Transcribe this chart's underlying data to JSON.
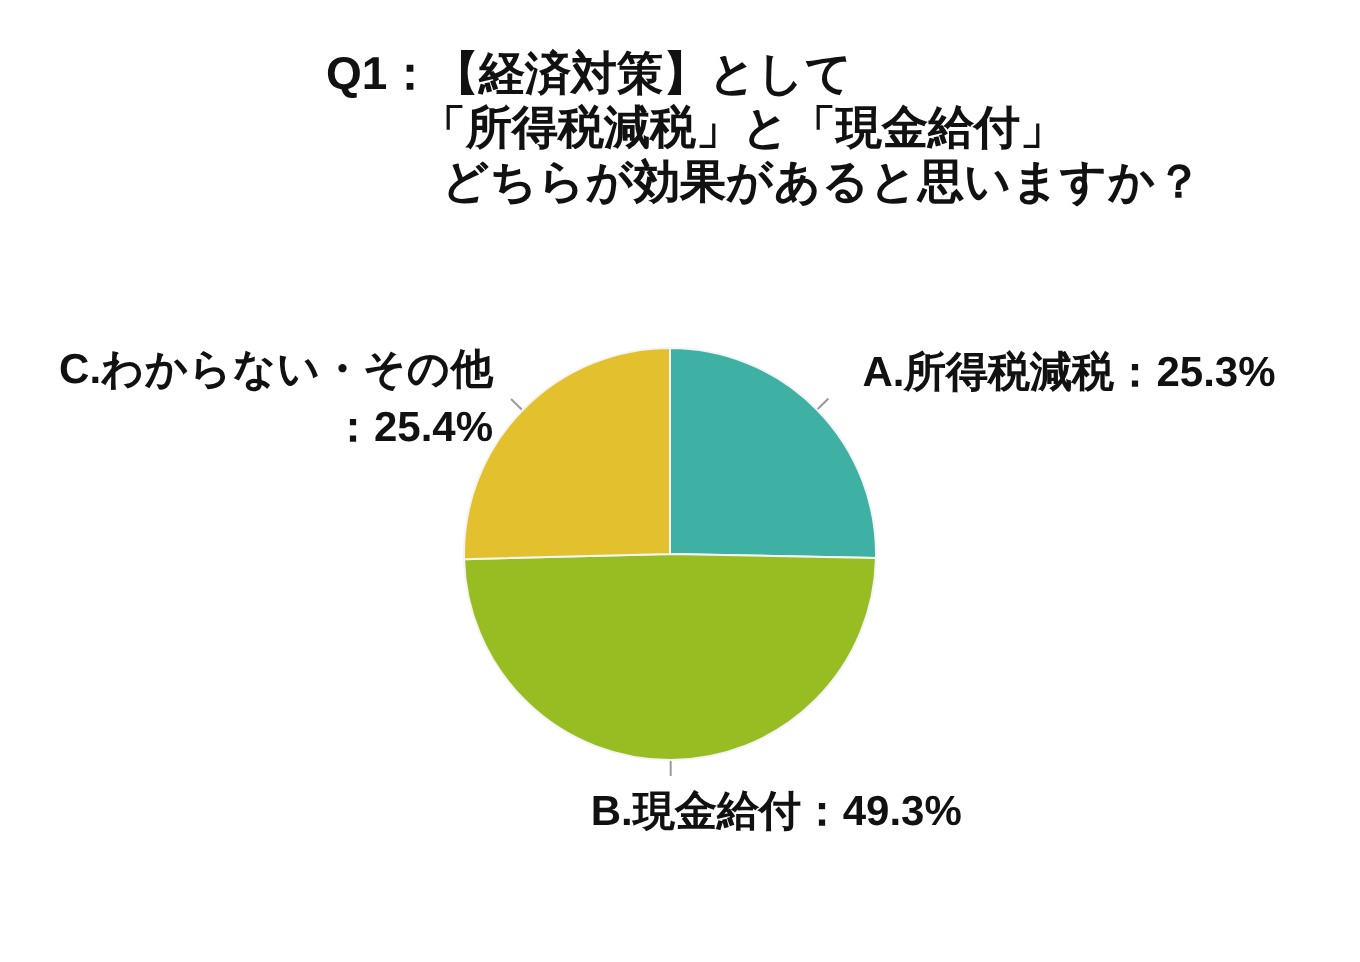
{
  "chart_data": {
    "type": "pie",
    "title": "Q1：【経済対策】として「所得税減税」と「現金給付」どちらが効果があると思いますか？",
    "categories": [
      "A.所得税減税",
      "B.現金給付",
      "C.わからない・その他"
    ],
    "values": [
      25.3,
      49.3,
      25.4
    ],
    "colors": [
      "#3eb0a4",
      "#98bd22",
      "#e3c02e"
    ],
    "value_labels": [
      "：25.3%",
      "：49.3%",
      "：25.4%"
    ]
  }
}
